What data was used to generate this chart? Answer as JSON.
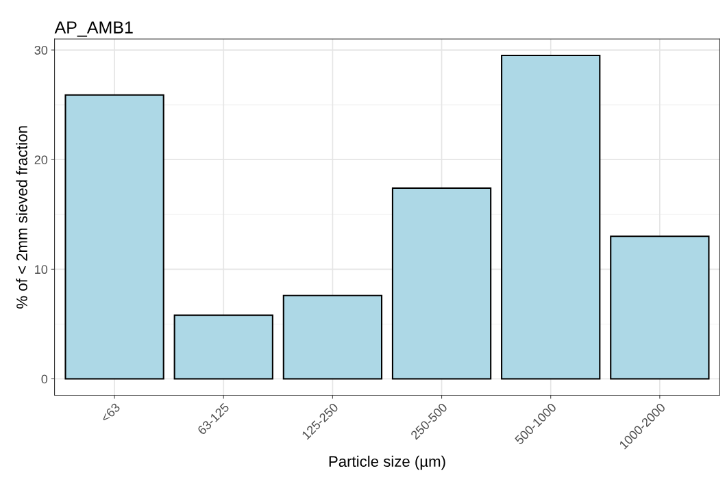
{
  "chart_data": {
    "type": "bar",
    "title": "AP_AMB1",
    "xlabel": "Particle size (µm)",
    "ylabel": "% of < 2mm sieved fraction",
    "categories": [
      "<63",
      "63-125",
      "125-250",
      "250-500",
      "500-1000",
      "1000-2000"
    ],
    "values": [
      25.9,
      5.8,
      7.6,
      17.4,
      29.5,
      13.0
    ],
    "color": "#add8e6",
    "ylim": [
      -1.5,
      31
    ],
    "yticks": [
      0,
      10,
      20,
      30
    ],
    "grid": true,
    "legend": false
  }
}
